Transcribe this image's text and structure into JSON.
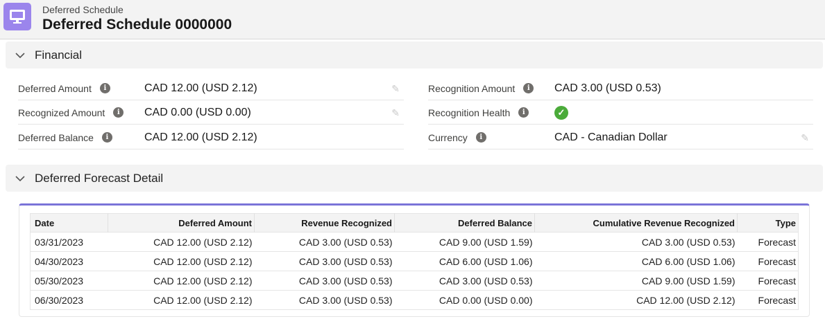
{
  "header": {
    "object_type": "Deferred Schedule",
    "title": "Deferred Schedule 0000000",
    "icon": "monitor-icon",
    "icon_color": "#9b85ec"
  },
  "financial": {
    "title": "Financial",
    "left": [
      {
        "label": "Deferred Amount",
        "value": "CAD 12.00 (USD 2.12)",
        "editable": true
      },
      {
        "label": "Recognized Amount",
        "value": "CAD 0.00 (USD 0.00)",
        "editable": true
      },
      {
        "label": "Deferred Balance",
        "value": "CAD 12.00 (USD 2.12)",
        "editable": false
      }
    ],
    "right": [
      {
        "label": "Recognition Amount",
        "value": "CAD 3.00 (USD 0.53)"
      },
      {
        "label": "Recognition Health",
        "value": "check-icon"
      },
      {
        "label": "Currency",
        "value": "CAD - Canadian Dollar"
      }
    ]
  },
  "forecast": {
    "title": "Deferred Forecast Detail",
    "accent": "#7a73d8",
    "columns": [
      "Date",
      "Deferred Amount",
      "Revenue Recognized",
      "Deferred Balance",
      "Cumulative Revenue Recognized",
      "Type"
    ],
    "rows": [
      [
        "03/31/2023",
        "CAD 12.00 (USD 2.12)",
        "CAD 3.00 (USD 0.53)",
        "CAD 9.00 (USD 1.59)",
        "CAD 3.00 (USD 0.53)",
        "Forecast"
      ],
      [
        "04/30/2023",
        "CAD 12.00 (USD 2.12)",
        "CAD 3.00 (USD 0.53)",
        "CAD 6.00 (USD 1.06)",
        "CAD 6.00 (USD 1.06)",
        "Forecast"
      ],
      [
        "05/30/2023",
        "CAD 12.00 (USD 2.12)",
        "CAD 3.00 (USD 0.53)",
        "CAD 3.00 (USD 0.53)",
        "CAD 9.00 (USD 1.59)",
        "Forecast"
      ],
      [
        "06/30/2023",
        "CAD 12.00 (USD 2.12)",
        "CAD 3.00 (USD 0.53)",
        "CAD 0.00 (USD 0.00)",
        "CAD 12.00 (USD 2.12)",
        "Forecast"
      ]
    ]
  }
}
